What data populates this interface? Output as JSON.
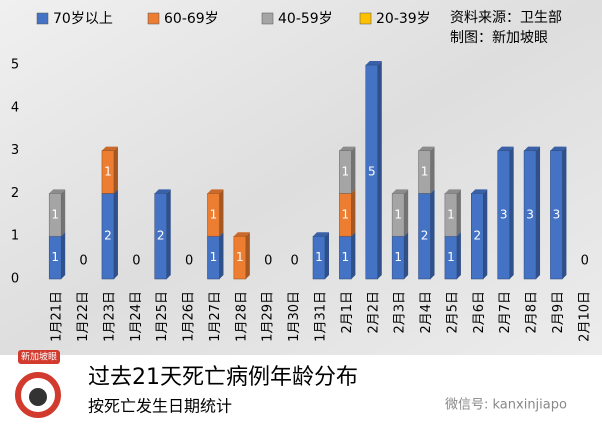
{
  "chart_data": {
    "type": "bar",
    "stacked": true,
    "title": "过去21天死亡病例年龄分布",
    "subtitle": "按死亡发生日期统计",
    "source": "资料来源：卫生部",
    "credit": "制图：新加坡眼",
    "logo_text": "新加坡眼",
    "watermark": "微信号: kanxinjiapo",
    "categories": [
      "1月21日",
      "1月22日",
      "1月23日",
      "1月24日",
      "1月25日",
      "1月26日",
      "1月27日",
      "1月28日",
      "1月29日",
      "1月30日",
      "1月31日",
      "2月1日",
      "2月2日",
      "2月3日",
      "2月4日",
      "2月5日",
      "2月6日",
      "2月7日",
      "2月8日",
      "2月9日",
      "2月10日"
    ],
    "series": [
      {
        "name": "70岁以上",
        "color": "#4472c4",
        "values": [
          1,
          0,
          2,
          0,
          2,
          0,
          1,
          0,
          0,
          0,
          1,
          1,
          5,
          1,
          2,
          1,
          2,
          3,
          3,
          3,
          0
        ]
      },
      {
        "name": "60-69岁",
        "color": "#ed7d31",
        "values": [
          0,
          0,
          1,
          0,
          0,
          0,
          1,
          1,
          0,
          0,
          0,
          1,
          0,
          0,
          0,
          0,
          0,
          0,
          0,
          0,
          0
        ]
      },
      {
        "name": "40-59岁",
        "color": "#a5a5a5",
        "values": [
          1,
          0,
          0,
          0,
          0,
          0,
          0,
          0,
          0,
          0,
          0,
          1,
          0,
          1,
          1,
          1,
          0,
          0,
          0,
          0,
          0
        ]
      },
      {
        "name": "20-39岁",
        "color": "#ffc000",
        "values": [
          0,
          0,
          0,
          0,
          0,
          0,
          0,
          0,
          0,
          0,
          0,
          0,
          0,
          0,
          0,
          0,
          0,
          0,
          0,
          0,
          0
        ]
      }
    ],
    "ylim": [
      0,
      5
    ],
    "yticks": [
      0,
      1,
      2,
      3,
      4,
      5
    ]
  }
}
